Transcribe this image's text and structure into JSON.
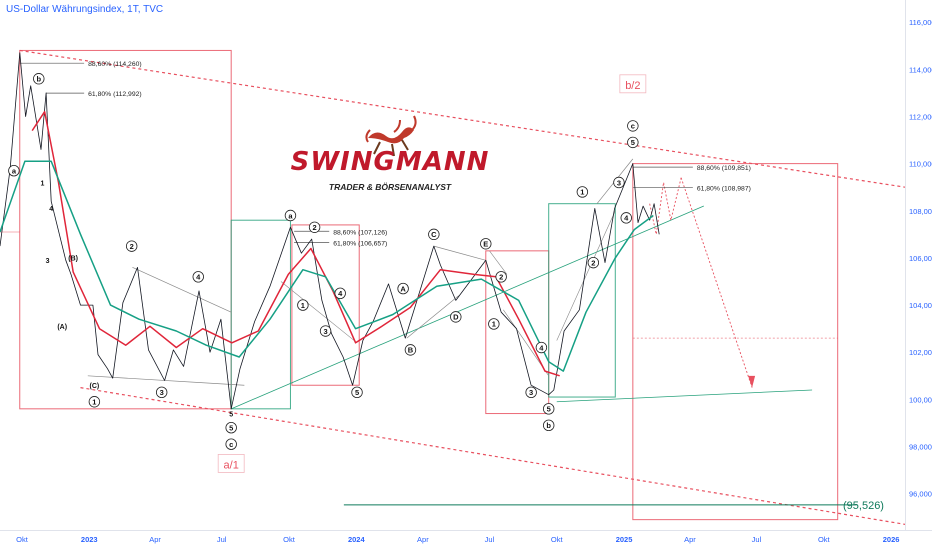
{
  "header": {
    "title": "US-Dollar Währungsindex, 1T, TVC"
  },
  "logo": {
    "name": "SWINGMANN",
    "tagline": "TRADER & BÖRSENANALYST"
  },
  "colors": {
    "price": "#131722",
    "ema_fast": "#e0263a",
    "ema_slow": "#16a085",
    "box_red": "#e8505f",
    "box_green": "#26a17b",
    "axis_text": "#2962ff",
    "fib": "#555555",
    "target": "#0f7a5b"
  },
  "chart_data": {
    "type": "line",
    "title": "US-Dollar Währungsindex, 1T, TVC",
    "x_ticks": [
      "Okt",
      "2023",
      "Apr",
      "Jul",
      "Okt",
      "2024",
      "Apr",
      "Jul",
      "Okt",
      "2025",
      "Apr",
      "Jul",
      "Okt",
      "2026"
    ],
    "y_ticks": [
      "116,000",
      "114,000",
      "112,000",
      "110,000",
      "108,000",
      "106,000",
      "104,000",
      "102,000",
      "100,000",
      "98,000",
      "96,000"
    ],
    "ylim": [
      94.8,
      116.6
    ],
    "x_range": [
      "2022-09-01",
      "2026-01-20"
    ],
    "series": [
      {
        "name": "",
        "color": "#131722",
        "points": [
          [
            "2022-09-01",
            106.5
          ],
          [
            "2022-09-15",
            109.8
          ],
          [
            "2022-09-28",
            114.7
          ],
          [
            "2022-10-06",
            112.0
          ],
          [
            "2022-10-13",
            113.3
          ],
          [
            "2022-10-27",
            110.6
          ],
          [
            "2022-11-03",
            113.0
          ],
          [
            "2022-11-10",
            108.4
          ],
          [
            "2022-11-30",
            105.9
          ],
          [
            "2022-12-07",
            105.3
          ],
          [
            "2022-12-20",
            104.0
          ],
          [
            "2023-01-06",
            104.0
          ],
          [
            "2023-01-13",
            101.9
          ],
          [
            "2023-01-26",
            101.3
          ],
          [
            "2023-02-02",
            100.9
          ],
          [
            "2023-02-16",
            104.1
          ],
          [
            "2023-03-08",
            105.6
          ],
          [
            "2023-03-23",
            102.1
          ],
          [
            "2023-04-14",
            100.8
          ],
          [
            "2023-04-26",
            102.1
          ],
          [
            "2023-05-10",
            101.4
          ],
          [
            "2023-05-31",
            104.6
          ],
          [
            "2023-06-15",
            102.0
          ],
          [
            "2023-06-30",
            103.4
          ],
          [
            "2023-07-14",
            99.6
          ],
          [
            "2023-07-26",
            101.3
          ],
          [
            "2023-08-15",
            103.3
          ],
          [
            "2023-09-05",
            104.8
          ],
          [
            "2023-10-03",
            107.3
          ],
          [
            "2023-10-18",
            106.2
          ],
          [
            "2023-11-01",
            106.8
          ],
          [
            "2023-11-15",
            104.2
          ],
          [
            "2023-11-28",
            102.8
          ],
          [
            "2023-12-14",
            101.8
          ],
          [
            "2023-12-27",
            100.6
          ],
          [
            "2024-01-10",
            102.5
          ],
          [
            "2024-01-24",
            103.3
          ],
          [
            "2024-02-14",
            104.9
          ],
          [
            "2024-03-08",
            102.6
          ],
          [
            "2024-04-16",
            106.5
          ],
          [
            "2024-04-25",
            105.7
          ],
          [
            "2024-05-16",
            104.2
          ],
          [
            "2024-06-26",
            105.9
          ],
          [
            "2024-07-17",
            103.7
          ],
          [
            "2024-08-07",
            103.0
          ],
          [
            "2024-08-27",
            100.6
          ],
          [
            "2024-09-20",
            100.2
          ],
          [
            "2024-09-27",
            100.4
          ],
          [
            "2024-10-11",
            102.9
          ],
          [
            "2024-11-01",
            103.8
          ],
          [
            "2024-11-22",
            108.1
          ],
          [
            "2024-12-06",
            105.8
          ],
          [
            "2024-12-19",
            108.1
          ],
          [
            "2025-01-13",
            110.0
          ],
          [
            "2025-01-20",
            107.5
          ],
          [
            "2025-01-27",
            108.2
          ],
          [
            "2025-02-05",
            107.6
          ],
          [
            "2025-02-11",
            108.3
          ],
          [
            "2025-02-18",
            107.0
          ]
        ]
      },
      {
        "name": "",
        "color": "#e0263a",
        "points": [
          [
            "2022-10-15",
            111.4
          ],
          [
            "2022-11-01",
            112.2
          ],
          [
            "2022-11-20",
            109.2
          ],
          [
            "2022-12-10",
            105.4
          ],
          [
            "2023-01-15",
            103.0
          ],
          [
            "2023-02-20",
            102.3
          ],
          [
            "2023-03-25",
            103.1
          ],
          [
            "2023-04-30",
            102.2
          ],
          [
            "2023-06-05",
            103.0
          ],
          [
            "2023-07-15",
            102.4
          ],
          [
            "2023-08-20",
            102.9
          ],
          [
            "2023-09-30",
            105.3
          ],
          [
            "2023-10-31",
            106.4
          ],
          [
            "2023-11-30",
            104.6
          ],
          [
            "2023-12-31",
            102.4
          ],
          [
            "2024-02-05",
            103.1
          ],
          [
            "2024-03-15",
            103.9
          ],
          [
            "2024-04-25",
            105.5
          ],
          [
            "2024-06-10",
            105.3
          ],
          [
            "2024-07-10",
            105.2
          ],
          [
            "2024-08-10",
            103.4
          ],
          [
            "2024-09-15",
            101.2
          ],
          [
            "2024-10-05",
            101.0
          ]
        ]
      },
      {
        "name": "",
        "color": "#16a085",
        "points": [
          [
            "2022-09-01",
            107.1
          ],
          [
            "2022-10-05",
            110.1
          ],
          [
            "2022-11-10",
            110.1
          ],
          [
            "2022-12-20",
            107.0
          ],
          [
            "2023-01-30",
            104.0
          ],
          [
            "2023-03-10",
            103.4
          ],
          [
            "2023-04-30",
            102.9
          ],
          [
            "2023-06-10",
            102.3
          ],
          [
            "2023-07-25",
            101.8
          ],
          [
            "2023-09-05",
            103.4
          ],
          [
            "2023-10-20",
            105.5
          ],
          [
            "2023-11-20",
            105.2
          ],
          [
            "2023-12-31",
            103.0
          ],
          [
            "2024-02-20",
            103.6
          ],
          [
            "2024-04-20",
            104.8
          ],
          [
            "2024-06-20",
            105.1
          ],
          [
            "2024-08-10",
            104.2
          ],
          [
            "2024-09-20",
            101.6
          ],
          [
            "2024-10-10",
            101.2
          ],
          [
            "2024-11-10",
            103.7
          ],
          [
            "2024-12-20",
            106.0
          ],
          [
            "2025-01-15",
            107.2
          ],
          [
            "2025-02-10",
            107.8
          ]
        ]
      }
    ],
    "fib_levels": [
      {
        "label": "88,60% (114,260)",
        "value": 114.26
      },
      {
        "label": "61,80% (112,992)",
        "value": 112.99
      },
      {
        "label": "88,60% (107,126)",
        "value": 107.13
      },
      {
        "label": "61,80% (106,657)",
        "value": 106.66
      },
      {
        "label": "88,60% (109,851)",
        "value": 109.85
      },
      {
        "label": "61,80% (108,987)",
        "value": 108.99
      }
    ],
    "target_label": "(95,526)",
    "target_value": 95.526,
    "waves": [
      {
        "label": "a",
        "date": "2022-09-20",
        "value": 109.7,
        "circle": true
      },
      {
        "label": "b",
        "date": "2022-10-24",
        "value": 113.6,
        "circle": true
      },
      {
        "label": "1",
        "date": "2022-10-29",
        "value": 109.2,
        "circle": false
      },
      {
        "label": "4",
        "date": "2022-11-10",
        "value": 108.1,
        "circle": false
      },
      {
        "label": "3",
        "date": "2022-11-05",
        "value": 105.9,
        "circle": false
      },
      {
        "label": "(B)",
        "date": "2022-12-10",
        "value": 106.0,
        "circle": false
      },
      {
        "label": "(A)",
        "date": "2022-11-25",
        "value": 103.1,
        "circle": false
      },
      {
        "label": "(C)",
        "date": "2023-01-08",
        "value": 100.6,
        "circle": false
      },
      {
        "label": "1",
        "date": "2023-01-08",
        "value": 99.9,
        "circle": true
      },
      {
        "label": "2",
        "date": "2023-02-28",
        "value": 106.5,
        "circle": true
      },
      {
        "label": "3",
        "date": "2023-04-10",
        "value": 100.3,
        "circle": true
      },
      {
        "label": "4",
        "date": "2023-05-30",
        "value": 105.2,
        "circle": true
      },
      {
        "label": "5",
        "date": "2023-07-14",
        "value": 99.4,
        "circle": false
      },
      {
        "label": "5",
        "date": "2023-07-14",
        "value": 98.8,
        "circle": true
      },
      {
        "label": "c",
        "date": "2023-07-14",
        "value": 98.1,
        "circle": true
      },
      {
        "label": "a",
        "date": "2023-10-03",
        "value": 107.8,
        "circle": true
      },
      {
        "label": "1",
        "date": "2023-10-20",
        "value": 104.0,
        "circle": true
      },
      {
        "label": "2",
        "date": "2023-11-05",
        "value": 107.3,
        "circle": true
      },
      {
        "label": "3",
        "date": "2023-11-20",
        "value": 102.9,
        "circle": true
      },
      {
        "label": "4",
        "date": "2023-12-10",
        "value": 104.5,
        "circle": true
      },
      {
        "label": "5",
        "date": "2024-01-02",
        "value": 100.3,
        "circle": true
      },
      {
        "label": "A",
        "date": "2024-03-05",
        "value": 104.7,
        "circle": true
      },
      {
        "label": "B",
        "date": "2024-03-15",
        "value": 102.1,
        "circle": true
      },
      {
        "label": "C",
        "date": "2024-04-16",
        "value": 107.0,
        "circle": true
      },
      {
        "label": "D",
        "date": "2024-05-16",
        "value": 103.5,
        "circle": true
      },
      {
        "label": "E",
        "date": "2024-06-26",
        "value": 106.6,
        "circle": true
      },
      {
        "label": "1",
        "date": "2024-07-07",
        "value": 103.2,
        "circle": true
      },
      {
        "label": "2",
        "date": "2024-07-17",
        "value": 105.2,
        "circle": true
      },
      {
        "label": "3",
        "date": "2024-08-27",
        "value": 100.3,
        "circle": true
      },
      {
        "label": "4",
        "date": "2024-09-10",
        "value": 102.2,
        "circle": true
      },
      {
        "label": "5",
        "date": "2024-09-20",
        "value": 99.6,
        "circle": true
      },
      {
        "label": "b",
        "date": "2024-09-20",
        "value": 98.9,
        "circle": true
      },
      {
        "label": "1",
        "date": "2024-11-05",
        "value": 108.8,
        "circle": true
      },
      {
        "label": "2",
        "date": "2024-11-20",
        "value": 105.8,
        "circle": true
      },
      {
        "label": "3",
        "date": "2024-12-25",
        "value": 109.2,
        "circle": true
      },
      {
        "label": "4",
        "date": "2025-01-04",
        "value": 107.7,
        "circle": true
      },
      {
        "label": "5",
        "date": "2025-01-13",
        "value": 110.9,
        "circle": true
      },
      {
        "label": "c",
        "date": "2025-01-13",
        "value": 111.6,
        "circle": true
      }
    ],
    "big_labels": [
      {
        "label": "b/2",
        "date": "2025-01-13",
        "value": 113.3
      },
      {
        "label": "a/1",
        "date": "2023-07-14",
        "value": 97.2
      }
    ]
  }
}
